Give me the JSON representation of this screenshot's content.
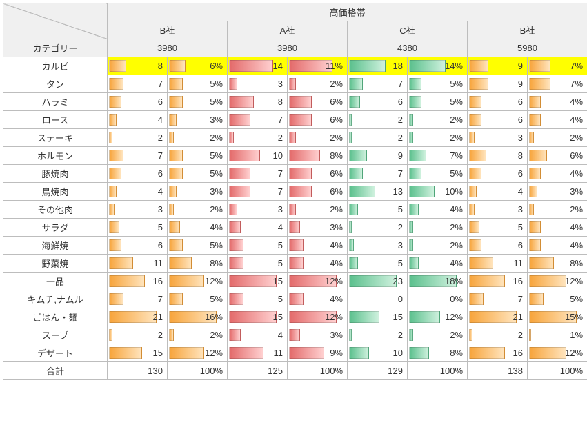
{
  "header_top": "高価格帯",
  "corner_label": "カテゴリー",
  "total_label": "合計",
  "companies": [
    {
      "name": "B社",
      "price": "3980",
      "color": "orange",
      "count_max": 21,
      "pct_max": 16
    },
    {
      "name": "A社",
      "price": "3980",
      "color": "red",
      "count_max": 15,
      "pct_max": 12
    },
    {
      "name": "C社",
      "price": "4380",
      "color": "green",
      "count_max": 23,
      "pct_max": 18
    },
    {
      "name": "B社",
      "price": "5980",
      "color": "orange",
      "count_max": 21,
      "pct_max": 15
    }
  ],
  "rows": [
    {
      "cat": "カルビ",
      "hl": true,
      "d": [
        [
          8,
          6
        ],
        [
          14,
          11
        ],
        [
          18,
          14
        ],
        [
          9,
          7
        ]
      ]
    },
    {
      "cat": "タン",
      "d": [
        [
          7,
          5
        ],
        [
          3,
          2
        ],
        [
          7,
          5
        ],
        [
          9,
          7
        ]
      ]
    },
    {
      "cat": "ハラミ",
      "d": [
        [
          6,
          5
        ],
        [
          8,
          6
        ],
        [
          6,
          5
        ],
        [
          6,
          4
        ]
      ]
    },
    {
      "cat": "ロース",
      "d": [
        [
          4,
          3
        ],
        [
          7,
          6
        ],
        [
          2,
          2
        ],
        [
          6,
          4
        ]
      ]
    },
    {
      "cat": "ステーキ",
      "d": [
        [
          2,
          2
        ],
        [
          2,
          2
        ],
        [
          2,
          2
        ],
        [
          3,
          2
        ]
      ]
    },
    {
      "cat": "ホルモン",
      "d": [
        [
          7,
          5
        ],
        [
          10,
          8
        ],
        [
          9,
          7
        ],
        [
          8,
          6
        ]
      ]
    },
    {
      "cat": "豚焼肉",
      "d": [
        [
          6,
          5
        ],
        [
          7,
          6
        ],
        [
          7,
          5
        ],
        [
          6,
          4
        ]
      ]
    },
    {
      "cat": "鳥焼肉",
      "d": [
        [
          4,
          3
        ],
        [
          7,
          6
        ],
        [
          13,
          10
        ],
        [
          4,
          3
        ]
      ]
    },
    {
      "cat": "その他肉",
      "d": [
        [
          3,
          2
        ],
        [
          3,
          2
        ],
        [
          5,
          4
        ],
        [
          3,
          2
        ]
      ]
    },
    {
      "cat": "サラダ",
      "d": [
        [
          5,
          4
        ],
        [
          4,
          3
        ],
        [
          2,
          2
        ],
        [
          5,
          4
        ]
      ]
    },
    {
      "cat": "海鮮焼",
      "d": [
        [
          6,
          5
        ],
        [
          5,
          4
        ],
        [
          3,
          2
        ],
        [
          6,
          4
        ]
      ]
    },
    {
      "cat": "野菜焼",
      "d": [
        [
          11,
          8
        ],
        [
          5,
          4
        ],
        [
          5,
          4
        ],
        [
          11,
          8
        ]
      ]
    },
    {
      "cat": "一品",
      "d": [
        [
          16,
          12
        ],
        [
          15,
          12
        ],
        [
          23,
          18
        ],
        [
          16,
          12
        ]
      ]
    },
    {
      "cat": "キムチ,ナムル",
      "d": [
        [
          7,
          5
        ],
        [
          5,
          4
        ],
        [
          0,
          0
        ],
        [
          7,
          5
        ]
      ]
    },
    {
      "cat": "ごはん・麺",
      "d": [
        [
          21,
          16
        ],
        [
          15,
          12
        ],
        [
          15,
          12
        ],
        [
          21,
          15
        ]
      ]
    },
    {
      "cat": "スープ",
      "d": [
        [
          2,
          2
        ],
        [
          4,
          3
        ],
        [
          2,
          2
        ],
        [
          2,
          1
        ]
      ]
    },
    {
      "cat": "デザート",
      "d": [
        [
          15,
          12
        ],
        [
          11,
          9
        ],
        [
          10,
          8
        ],
        [
          16,
          12
        ]
      ]
    }
  ],
  "totals": [
    [
      130,
      100
    ],
    [
      125,
      100
    ],
    [
      129,
      100
    ],
    [
      138,
      100
    ]
  ],
  "bar_area_pct": 82,
  "colors": {
    "border": "#bdbdbd",
    "header_bg": "#f0f0f0",
    "highlight": "#ffff00",
    "orange": [
      "#f7a43b",
      "#ffe4bd"
    ],
    "red": [
      "#e36a6a",
      "#ffd0d0"
    ],
    "green": [
      "#5bc08d",
      "#cff1de"
    ]
  }
}
